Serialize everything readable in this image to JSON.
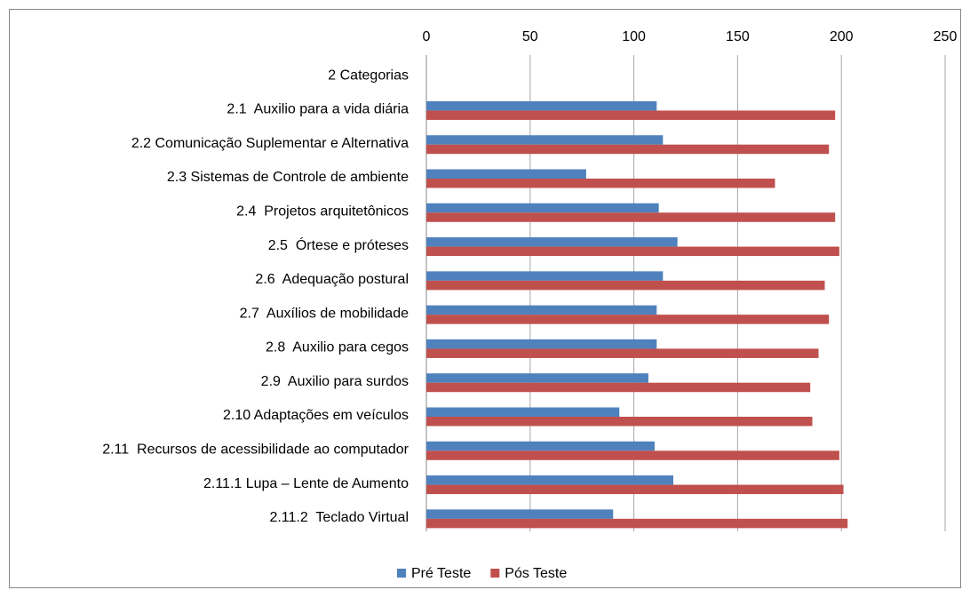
{
  "chart_data": {
    "type": "bar",
    "orientation": "horizontal",
    "categories": [
      "2 Categorias",
      "2.1  Auxilio para a vida diária",
      "2.2 Comunicação Suplementar e Alternativa",
      "2.3 Sistemas de Controle de ambiente",
      "2.4  Projetos arquitetônicos",
      "2.5  Órtese e próteses",
      "2.6  Adequação postural",
      "2.7  Auxílios de mobilidade",
      "2.8  Auxilio para cegos",
      "2.9  Auxilio para surdos",
      "2.10 Adaptações em veículos",
      "2.11  Recursos de acessibilidade ao computador",
      "2.11.1 Lupa – Lente de Aumento",
      "2.11.2  Teclado Virtual"
    ],
    "series": [
      {
        "name": "Pré Teste",
        "color": "#4f81bd",
        "values": [
          null,
          111,
          114,
          77,
          112,
          121,
          114,
          111,
          111,
          107,
          93,
          110,
          119,
          90
        ]
      },
      {
        "name": "Pós Teste",
        "color": "#c0504d",
        "values": [
          null,
          197,
          194,
          168,
          197,
          199,
          192,
          194,
          189,
          185,
          186,
          199,
          201,
          203
        ]
      }
    ],
    "xlim": [
      0,
      250
    ],
    "xticks": [
      0,
      50,
      100,
      150,
      200,
      250
    ],
    "grid": true,
    "legend": "bottom"
  }
}
